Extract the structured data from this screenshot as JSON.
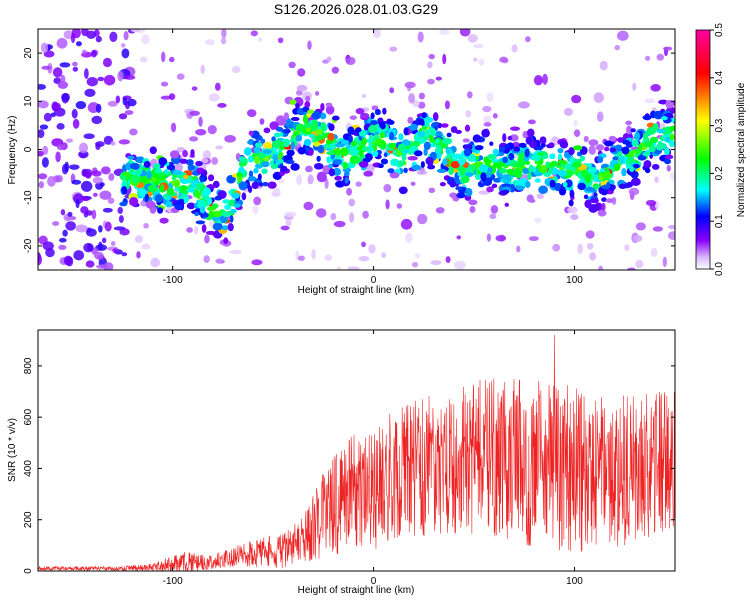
{
  "title": "S126.2026.028.01.03.G29",
  "chart_data": [
    {
      "type": "heatmap",
      "xlabel": "Height of straight line (km)",
      "ylabel": "Frequency (Hz)",
      "xlim": [
        -167,
        150
      ],
      "ylim": [
        -25,
        25
      ],
      "xticks": [
        -100,
        0,
        100
      ],
      "yticks": [
        -20,
        -10,
        0,
        10,
        20
      ],
      "ridge": {
        "x": [
          -115,
          -100,
          -90,
          -80,
          -72,
          -65,
          -55,
          -45,
          -35,
          -25,
          -15,
          -5,
          5,
          15,
          25,
          35,
          45,
          55,
          65,
          80,
          95,
          110,
          125,
          140
        ],
        "frequency": [
          -6,
          -7,
          -7,
          -13,
          -13,
          -4,
          -2,
          0,
          5,
          3,
          -2,
          1,
          2,
          -2,
          3,
          -1,
          -4,
          -3,
          -4,
          -3,
          -4,
          -6,
          -3,
          3
        ]
      },
      "colorbar": {
        "label": "Normalized spectral amplitude",
        "range": [
          0.0,
          0.5
        ],
        "ticks": [
          0.0,
          0.1,
          0.2,
          0.3,
          0.4,
          0.5
        ],
        "colors": [
          "#ffffff",
          "#d8b4ff",
          "#8a00ff",
          "#0000ff",
          "#00ffff",
          "#00ff00",
          "#ffff00",
          "#ff0000",
          "#ff00a0"
        ]
      }
    },
    {
      "type": "line",
      "xlabel": "Height of straight line (km)",
      "ylabel": "SNR (10 * v/v)",
      "xlim": [
        -167,
        150
      ],
      "ylim": [
        0,
        940
      ],
      "xticks": [
        -100,
        0,
        100
      ],
      "yticks": [
        0,
        200,
        400,
        600,
        800
      ],
      "color": "#ee2222",
      "series": [
        {
          "name": "SNR",
          "envelope_x": [
            -167,
            -130,
            -110,
            -95,
            -80,
            -70,
            -55,
            -45,
            -35,
            -25,
            -20,
            -10,
            0,
            20,
            40,
            60,
            80,
            100,
            120,
            140,
            150
          ],
          "baseline": [
            10,
            10,
            15,
            35,
            35,
            55,
            75,
            80,
            120,
            220,
            260,
            310,
            330,
            400,
            430,
            450,
            420,
            400,
            380,
            420,
            430
          ],
          "spread": [
            8,
            8,
            15,
            40,
            30,
            40,
            60,
            70,
            90,
            170,
            200,
            230,
            250,
            270,
            290,
            320,
            330,
            330,
            300,
            280,
            280
          ],
          "peak": 920
        }
      ]
    }
  ]
}
